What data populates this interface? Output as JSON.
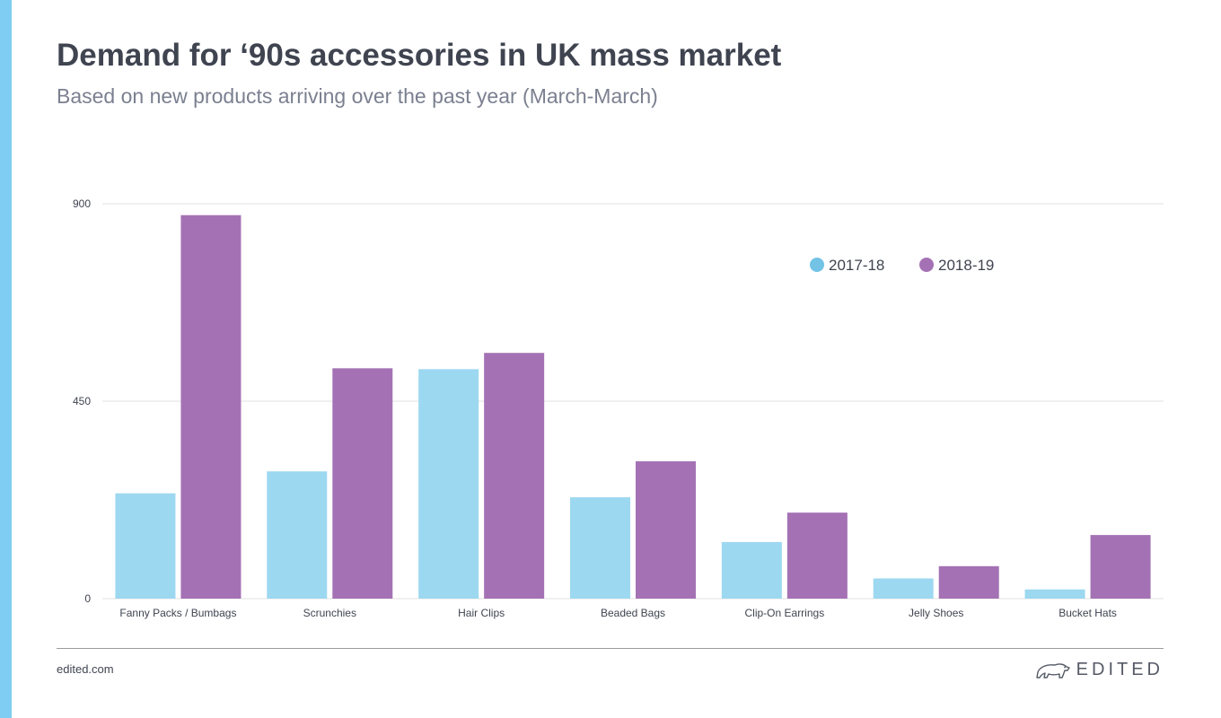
{
  "header": {
    "title": "Demand for ‘90s accessories in UK mass market",
    "subtitle": "Based on new products arriving over the past year (March-March)"
  },
  "footer": {
    "url": "edited.com",
    "brand": "EDITED",
    "brand_icon": "polar-bear-icon"
  },
  "colors": {
    "accent": "#7fcdf2",
    "series_2017_18": "#9dd8f1",
    "series_2018_19": "#a472b4",
    "legend_2017_18": "#72c3e6",
    "legend_2018_19": "#a472b4",
    "grid": "#e2e2e2",
    "text": "#3f4450"
  },
  "chart_data": {
    "type": "bar",
    "title": "Demand for ‘90s accessories in UK mass market",
    "subtitle": "Based on new products arriving over the past year (March-March)",
    "categories": [
      "Fanny Packs / Bumbags",
      "Scrunchies",
      "Hair Clips",
      "Beaded Bags",
      "Clip-On Earrings",
      "Jelly Shoes",
      "Bucket Hats"
    ],
    "series": [
      {
        "name": "2017-18",
        "values": [
          240,
          290,
          523,
          231,
          129,
          46,
          21
        ]
      },
      {
        "name": "2018-19",
        "values": [
          874,
          525,
          560,
          313,
          196,
          74,
          145
        ]
      }
    ],
    "xlabel": "",
    "ylabel": "",
    "ylim": [
      0,
      900
    ],
    "yticks": [
      "0",
      "450",
      "900"
    ],
    "grid": true,
    "legend_position": "top-right"
  }
}
